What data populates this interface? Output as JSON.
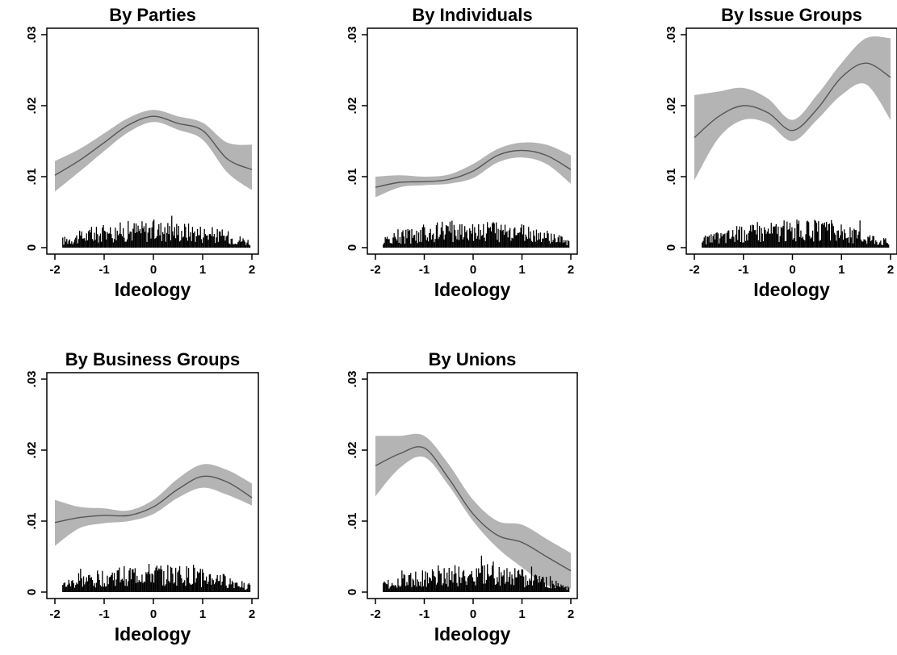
{
  "colors": {
    "band": "#b4b4b4",
    "line": "#555555",
    "hist": "#000000",
    "frame": "#000000"
  },
  "chart_data": [
    {
      "type": "line",
      "title": "By Parties",
      "xlabel": "Ideology",
      "ylabel": "",
      "xlim": [
        -2,
        2
      ],
      "ylim": [
        0,
        0.03
      ],
      "x_ticks": [
        "-2",
        "-1",
        "0",
        "1",
        "2"
      ],
      "y_ticks": [
        "0",
        ".01",
        ".02",
        ".03"
      ],
      "x": [
        -2,
        -1.5,
        -1,
        -0.5,
        0,
        0.5,
        1,
        1.5,
        2
      ],
      "mean": [
        0.0102,
        0.0123,
        0.0148,
        0.0173,
        0.0185,
        0.0175,
        0.0165,
        0.0125,
        0.011
      ],
      "lower": [
        0.0079,
        0.0107,
        0.0136,
        0.0163,
        0.0177,
        0.0166,
        0.0152,
        0.0106,
        0.0081
      ],
      "upper": [
        0.0122,
        0.0139,
        0.0161,
        0.0183,
        0.0194,
        0.0185,
        0.0176,
        0.0148,
        0.0145
      ],
      "histogram": "density of observations along ideology (spikes near baseline)"
    },
    {
      "type": "line",
      "title": "By Individuals",
      "xlabel": "Ideology",
      "ylabel": "",
      "xlim": [
        -2,
        2
      ],
      "ylim": [
        0,
        0.03
      ],
      "x_ticks": [
        "-2",
        "-1",
        "0",
        "1",
        "2"
      ],
      "y_ticks": [
        "0",
        ".01",
        ".02",
        ".03"
      ],
      "x": [
        -2,
        -1.5,
        -1,
        -0.5,
        0,
        0.5,
        1,
        1.5,
        2
      ],
      "mean": [
        0.0085,
        0.0092,
        0.0093,
        0.0096,
        0.0108,
        0.013,
        0.0137,
        0.013,
        0.011
      ],
      "lower": [
        0.0071,
        0.0085,
        0.0088,
        0.009,
        0.0098,
        0.012,
        0.0127,
        0.0118,
        0.009
      ],
      "upper": [
        0.01,
        0.0102,
        0.01,
        0.0103,
        0.0118,
        0.0139,
        0.0148,
        0.0145,
        0.013
      ],
      "histogram": "density of observations along ideology (spikes near baseline)"
    },
    {
      "type": "line",
      "title": "By Issue Groups",
      "xlabel": "Ideology",
      "ylabel": "",
      "xlim": [
        -2,
        2
      ],
      "ylim": [
        0,
        0.03
      ],
      "x_ticks": [
        "-2",
        "-1",
        "0",
        "1",
        "2"
      ],
      "y_ticks": [
        "0",
        ".01",
        ".02",
        ".03"
      ],
      "x": [
        -2,
        -1.5,
        -1,
        -0.5,
        0,
        0.5,
        1,
        1.5,
        2
      ],
      "mean": [
        0.0155,
        0.0185,
        0.02,
        0.019,
        0.0165,
        0.0195,
        0.024,
        0.026,
        0.024
      ],
      "lower": [
        0.0095,
        0.0155,
        0.018,
        0.0175,
        0.015,
        0.018,
        0.0215,
        0.023,
        0.018
      ],
      "upper": [
        0.0215,
        0.022,
        0.0225,
        0.021,
        0.018,
        0.0215,
        0.026,
        0.0295,
        0.0295
      ],
      "histogram": "density of observations along ideology (spikes near baseline)"
    },
    {
      "type": "line",
      "title": "By Business Groups",
      "xlabel": "Ideology",
      "ylabel": "",
      "xlim": [
        -2,
        2
      ],
      "ylim": [
        0,
        0.03
      ],
      "x_ticks": [
        "-2",
        "-1",
        "0",
        "1",
        "2"
      ],
      "y_ticks": [
        "0",
        ".01",
        ".02",
        ".03"
      ],
      "x": [
        -2,
        -1.5,
        -1,
        -0.5,
        0,
        0.5,
        1,
        1.5,
        2
      ],
      "mean": [
        0.0098,
        0.0105,
        0.0108,
        0.0108,
        0.012,
        0.0145,
        0.0163,
        0.0155,
        0.0133
      ],
      "lower": [
        0.0065,
        0.009,
        0.0097,
        0.01,
        0.011,
        0.0133,
        0.0147,
        0.0137,
        0.0122
      ],
      "upper": [
        0.013,
        0.012,
        0.0118,
        0.0115,
        0.013,
        0.016,
        0.018,
        0.0172,
        0.0153
      ],
      "histogram": "density of observations along ideology (spikes near baseline)"
    },
    {
      "type": "line",
      "title": "By Unions",
      "xlabel": "Ideology",
      "ylabel": "",
      "xlim": [
        -2,
        2
      ],
      "ylim": [
        0,
        0.03
      ],
      "x_ticks": [
        "-2",
        "-1",
        "0",
        "1",
        "2"
      ],
      "y_ticks": [
        "0",
        ".01",
        ".02",
        ".03"
      ],
      "x": [
        -2,
        -1.5,
        -1,
        -0.5,
        0,
        0.5,
        1,
        1.5,
        2
      ],
      "mean": [
        0.0178,
        0.0195,
        0.0203,
        0.016,
        0.011,
        0.008,
        0.007,
        0.005,
        0.003
      ],
      "lower": [
        0.0135,
        0.0175,
        0.019,
        0.015,
        0.01,
        0.0062,
        0.0035,
        0.001,
        0.0005
      ],
      "upper": [
        0.022,
        0.022,
        0.022,
        0.018,
        0.013,
        0.01,
        0.0095,
        0.0075,
        0.0055
      ],
      "histogram": "density of observations along ideology (spikes near baseline)"
    }
  ]
}
